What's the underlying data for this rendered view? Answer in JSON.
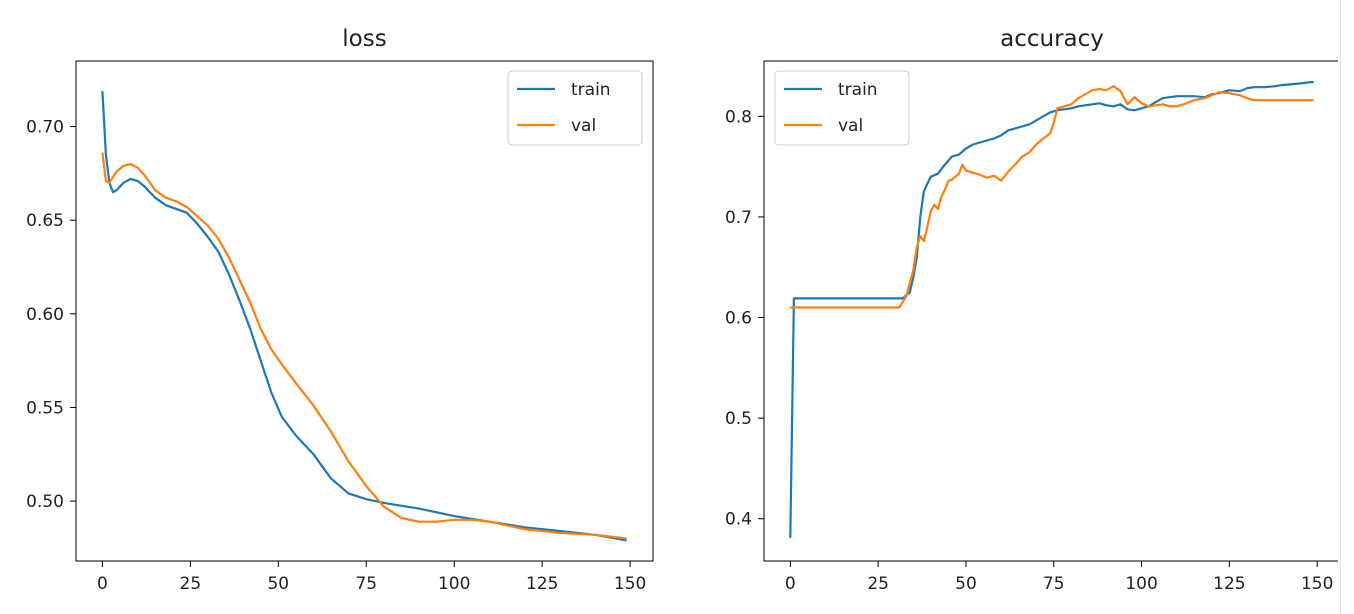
{
  "chart_data": [
    {
      "type": "line",
      "title": "loss",
      "xlabel": "",
      "ylabel": "",
      "xlim": [
        -7.5,
        156.5
      ],
      "ylim": [
        0.468,
        0.735
      ],
      "xticks": [
        0,
        25,
        50,
        75,
        100,
        125,
        150
      ],
      "yticks": [
        0.5,
        0.55,
        0.6,
        0.65,
        0.7
      ],
      "ytick_labels": [
        "0.50",
        "0.55",
        "0.60",
        "0.65",
        "0.70"
      ],
      "legend": "top-right",
      "grid": false,
      "series": [
        {
          "name": "train",
          "color": "#1f77b4",
          "x": [
            0,
            1,
            2,
            3,
            4,
            6,
            8,
            10,
            12,
            15,
            18,
            21,
            24,
            27,
            30,
            33,
            36,
            39,
            42,
            45,
            48,
            51,
            55,
            60,
            65,
            70,
            75,
            80,
            90,
            100,
            110,
            120,
            130,
            140,
            149
          ],
          "y": [
            0.719,
            0.685,
            0.67,
            0.665,
            0.666,
            0.67,
            0.672,
            0.671,
            0.668,
            0.662,
            0.658,
            0.656,
            0.654,
            0.648,
            0.641,
            0.633,
            0.621,
            0.607,
            0.592,
            0.575,
            0.558,
            0.545,
            0.535,
            0.525,
            0.512,
            0.504,
            0.501,
            0.499,
            0.496,
            0.492,
            0.489,
            0.486,
            0.484,
            0.482,
            0.479
          ]
        },
        {
          "name": "val",
          "color": "#ff7f0e",
          "x": [
            0,
            1,
            2,
            3,
            4,
            6,
            8,
            10,
            12,
            15,
            18,
            21,
            24,
            27,
            30,
            33,
            36,
            39,
            42,
            45,
            48,
            51,
            55,
            60,
            65,
            70,
            75,
            80,
            85,
            90,
            95,
            100,
            105,
            110,
            115,
            120,
            125,
            130,
            140,
            149
          ],
          "y": [
            0.686,
            0.671,
            0.67,
            0.673,
            0.676,
            0.679,
            0.68,
            0.678,
            0.674,
            0.666,
            0.662,
            0.66,
            0.657,
            0.652,
            0.647,
            0.64,
            0.63,
            0.618,
            0.606,
            0.592,
            0.581,
            0.573,
            0.563,
            0.551,
            0.537,
            0.521,
            0.508,
            0.497,
            0.491,
            0.489,
            0.489,
            0.49,
            0.49,
            0.489,
            0.487,
            0.485,
            0.484,
            0.483,
            0.482,
            0.48
          ]
        }
      ]
    },
    {
      "type": "line",
      "title": "accuracy",
      "xlabel": "",
      "ylabel": "",
      "xlim": [
        -7.5,
        156.5
      ],
      "ylim": [
        0.358,
        0.855
      ],
      "xticks": [
        0,
        25,
        50,
        75,
        100,
        125,
        150
      ],
      "yticks": [
        0.4,
        0.5,
        0.6,
        0.7,
        0.8
      ],
      "ytick_labels": [
        "0.4",
        "0.5",
        "0.6",
        "0.7",
        "0.8"
      ],
      "legend": "top-left",
      "grid": false,
      "series": [
        {
          "name": "train",
          "color": "#1f77b4",
          "x": [
            0,
            1,
            5,
            10,
            15,
            20,
            25,
            30,
            32,
            34,
            35,
            36,
            37,
            38,
            39,
            40,
            42,
            44,
            46,
            48,
            50,
            52,
            55,
            58,
            60,
            62,
            65,
            68,
            70,
            72,
            74,
            76,
            78,
            80,
            82,
            84,
            86,
            88,
            90,
            92,
            94,
            96,
            98,
            100,
            102,
            104,
            106,
            108,
            110,
            112,
            115,
            118,
            120,
            122,
            125,
            128,
            130,
            132,
            135,
            138,
            140,
            143,
            146,
            148,
            149
          ],
          "y": [
            0.381,
            0.619,
            0.619,
            0.619,
            0.619,
            0.619,
            0.619,
            0.619,
            0.619,
            0.625,
            0.64,
            0.66,
            0.7,
            0.725,
            0.733,
            0.74,
            0.743,
            0.752,
            0.76,
            0.762,
            0.768,
            0.772,
            0.775,
            0.778,
            0.781,
            0.786,
            0.789,
            0.792,
            0.796,
            0.8,
            0.804,
            0.806,
            0.807,
            0.808,
            0.81,
            0.811,
            0.812,
            0.813,
            0.811,
            0.81,
            0.812,
            0.807,
            0.806,
            0.808,
            0.81,
            0.814,
            0.818,
            0.819,
            0.82,
            0.82,
            0.82,
            0.819,
            0.822,
            0.823,
            0.826,
            0.825,
            0.828,
            0.829,
            0.829,
            0.83,
            0.831,
            0.832,
            0.833,
            0.834,
            0.834
          ]
        },
        {
          "name": "val",
          "color": "#ff7f0e",
          "x": [
            0,
            1,
            5,
            10,
            15,
            20,
            25,
            30,
            31,
            33,
            35,
            36,
            37,
            38,
            39,
            40,
            41,
            42,
            43,
            44,
            45,
            46,
            47,
            48,
            49,
            50,
            52,
            54,
            56,
            58,
            60,
            62,
            64,
            66,
            68,
            70,
            72,
            74,
            75,
            76,
            78,
            80,
            82,
            84,
            86,
            88,
            90,
            92,
            94,
            96,
            98,
            100,
            102,
            104,
            106,
            108,
            110,
            112,
            115,
            118,
            120,
            122,
            125,
            128,
            130,
            132,
            135,
            140,
            145,
            149
          ],
          "y": [
            0.61,
            0.61,
            0.61,
            0.61,
            0.61,
            0.61,
            0.61,
            0.61,
            0.61,
            0.621,
            0.647,
            0.67,
            0.681,
            0.676,
            0.69,
            0.706,
            0.712,
            0.708,
            0.72,
            0.727,
            0.736,
            0.737,
            0.74,
            0.743,
            0.752,
            0.746,
            0.744,
            0.742,
            0.739,
            0.741,
            0.736,
            0.745,
            0.752,
            0.76,
            0.764,
            0.772,
            0.778,
            0.783,
            0.794,
            0.808,
            0.81,
            0.812,
            0.818,
            0.822,
            0.826,
            0.827,
            0.826,
            0.83,
            0.825,
            0.812,
            0.819,
            0.813,
            0.81,
            0.811,
            0.812,
            0.81,
            0.81,
            0.812,
            0.816,
            0.818,
            0.821,
            0.824,
            0.823,
            0.821,
            0.818,
            0.816,
            0.816,
            0.816,
            0.816,
            0.816
          ]
        }
      ]
    }
  ]
}
